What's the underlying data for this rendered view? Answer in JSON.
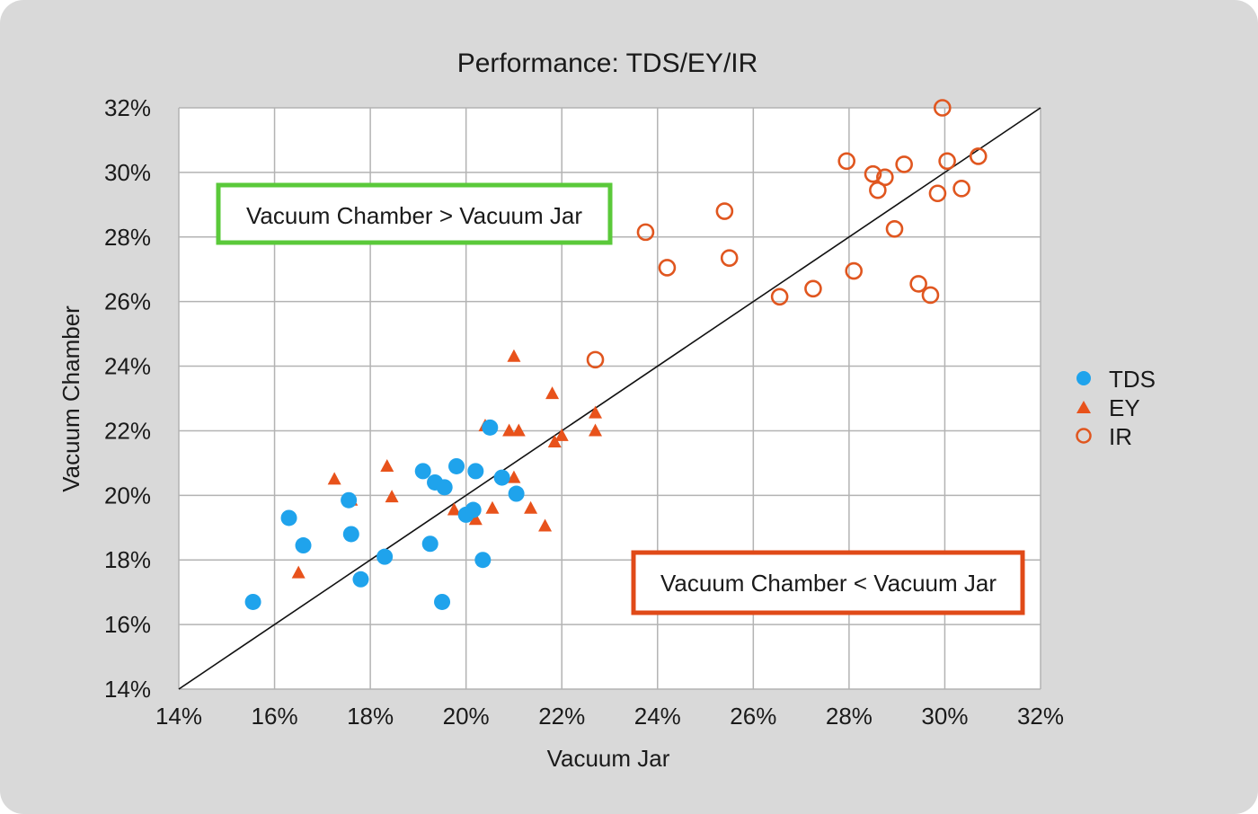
{
  "colors": {
    "background": "#d9d9d9",
    "plot_background": "#ffffff",
    "grid": "#b3b3b3",
    "tds": "#1fa3ec",
    "ey": "#e8521b",
    "ir": "#e0561f",
    "green_box": "#5ac93a",
    "orange_box": "#e04a18",
    "diagonal": "#111111"
  },
  "chart_data": {
    "type": "scatter",
    "title": "Performance: TDS/EY/IR",
    "xlabel": "Vacuum Jar",
    "ylabel": "Vacuum Chamber",
    "xlim": [
      14,
      32
    ],
    "ylim": [
      14,
      32
    ],
    "x_ticks": [
      "14%",
      "16%",
      "18%",
      "20%",
      "22%",
      "24%",
      "26%",
      "28%",
      "30%",
      "32%"
    ],
    "y_ticks": [
      "14%",
      "16%",
      "18%",
      "20%",
      "22%",
      "24%",
      "26%",
      "28%",
      "30%",
      "32%"
    ],
    "grid": true,
    "legend_position": "right",
    "reference_line": {
      "from": [
        14,
        14
      ],
      "to": [
        32,
        32
      ]
    },
    "annotations": [
      {
        "text": "Vacuum Chamber > Vacuum Jar",
        "color": "green"
      },
      {
        "text": "Vacuum Chamber < Vacuum Jar",
        "color": "orange"
      }
    ],
    "series": [
      {
        "name": "TDS",
        "marker": "filled-circle",
        "points": [
          [
            15.55,
            16.7
          ],
          [
            16.3,
            19.3
          ],
          [
            16.6,
            18.45
          ],
          [
            17.55,
            19.85
          ],
          [
            17.6,
            18.8
          ],
          [
            17.8,
            17.4
          ],
          [
            18.3,
            18.1
          ],
          [
            19.1,
            20.75
          ],
          [
            19.25,
            18.5
          ],
          [
            19.35,
            20.4
          ],
          [
            19.5,
            16.7
          ],
          [
            19.55,
            20.25
          ],
          [
            19.8,
            20.9
          ],
          [
            20.0,
            19.4
          ],
          [
            20.15,
            19.55
          ],
          [
            20.2,
            20.75
          ],
          [
            20.35,
            18.0
          ],
          [
            20.5,
            22.1
          ],
          [
            20.75,
            20.55
          ],
          [
            21.05,
            20.05
          ]
        ]
      },
      {
        "name": "EY",
        "marker": "filled-triangle",
        "points": [
          [
            16.5,
            17.6
          ],
          [
            17.25,
            20.5
          ],
          [
            17.6,
            19.85
          ],
          [
            18.35,
            20.9
          ],
          [
            18.45,
            19.95
          ],
          [
            19.75,
            19.55
          ],
          [
            20.2,
            19.25
          ],
          [
            20.4,
            22.15
          ],
          [
            20.55,
            19.6
          ],
          [
            20.9,
            22.0
          ],
          [
            21.0,
            20.55
          ],
          [
            21.0,
            24.3
          ],
          [
            21.1,
            22.0
          ],
          [
            21.35,
            19.6
          ],
          [
            21.65,
            19.05
          ],
          [
            21.8,
            23.15
          ],
          [
            21.85,
            21.65
          ],
          [
            22.0,
            21.85
          ],
          [
            22.7,
            22.55
          ],
          [
            22.7,
            22.0
          ]
        ]
      },
      {
        "name": "IR",
        "marker": "open-circle",
        "points": [
          [
            22.7,
            24.2
          ],
          [
            23.75,
            28.15
          ],
          [
            24.2,
            27.05
          ],
          [
            25.4,
            28.8
          ],
          [
            25.5,
            27.35
          ],
          [
            26.55,
            26.15
          ],
          [
            27.25,
            26.4
          ],
          [
            27.95,
            30.35
          ],
          [
            28.1,
            26.95
          ],
          [
            28.5,
            29.95
          ],
          [
            28.6,
            29.45
          ],
          [
            28.75,
            29.85
          ],
          [
            28.95,
            28.25
          ],
          [
            29.15,
            30.25
          ],
          [
            29.45,
            26.55
          ],
          [
            29.7,
            26.2
          ],
          [
            29.85,
            29.35
          ],
          [
            29.95,
            32.0
          ],
          [
            30.05,
            30.35
          ],
          [
            30.35,
            29.5
          ],
          [
            30.7,
            30.5
          ]
        ]
      }
    ]
  }
}
